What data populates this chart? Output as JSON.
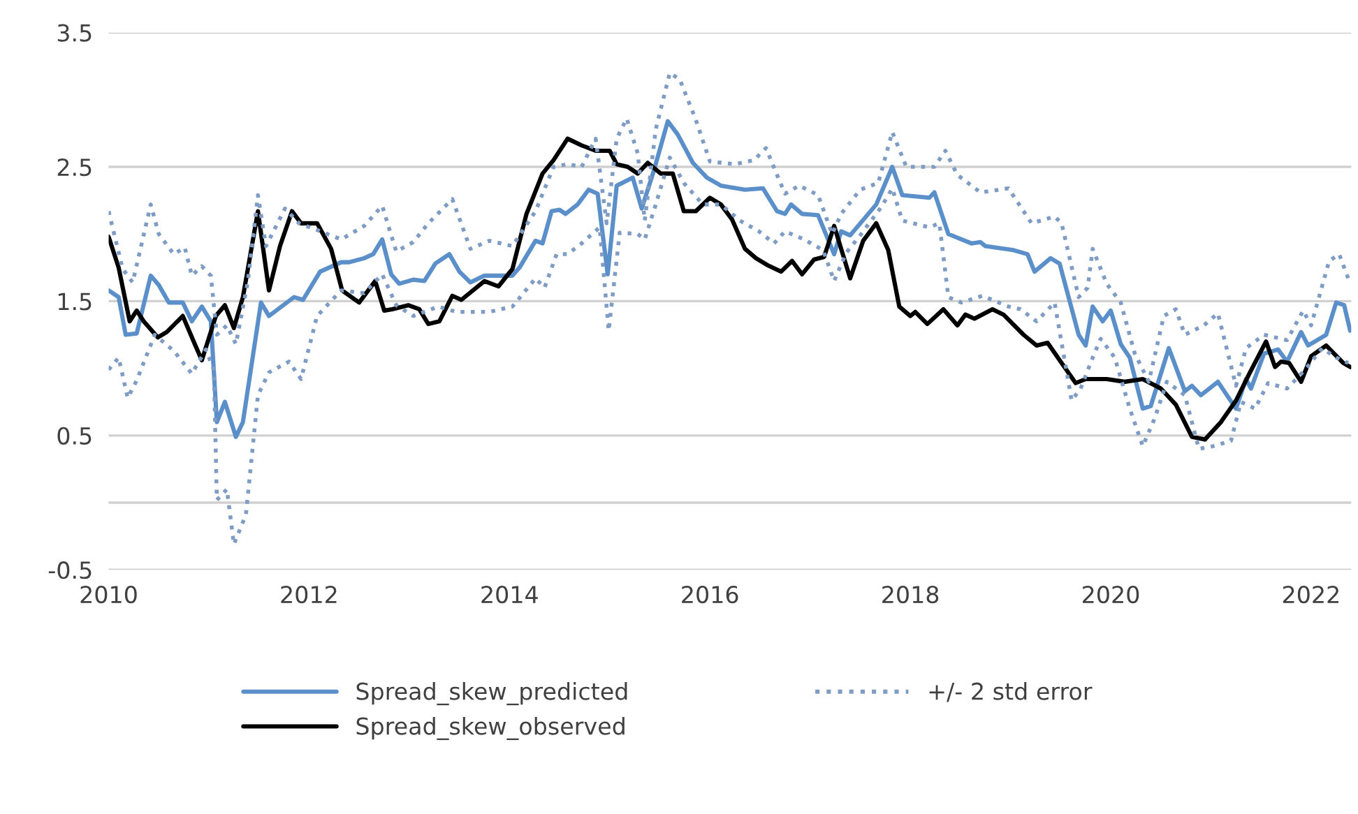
{
  "chart_data": {
    "type": "line",
    "xlim": [
      2010,
      2022.4
    ],
    "xticks": [
      2010,
      2012,
      2014,
      2016,
      2018,
      2020,
      2022
    ],
    "ylim": [
      -0.5,
      3.5
    ],
    "yticks": [
      -0.5,
      {
        "value": 0,
        "label": null
      },
      0.5,
      1.5,
      2.5,
      3.5
    ],
    "grid": "y",
    "legend": "bottom",
    "series": [
      {
        "name": "Spread_skew_predicted",
        "color": "#5b8fc9",
        "line_style": "solid",
        "x": [
          2010.0,
          2010.1,
          2010.17,
          2010.28,
          2010.42,
          2010.5,
          2010.6,
          2010.74,
          2010.83,
          2010.93,
          2011.02,
          2011.08,
          2011.16,
          2011.27,
          2011.34,
          2011.52,
          2011.6,
          2011.85,
          2011.94,
          2012.11,
          2012.32,
          2012.4,
          2012.55,
          2012.64,
          2012.73,
          2012.82,
          2012.9,
          2013.04,
          2013.15,
          2013.26,
          2013.4,
          2013.5,
          2013.61,
          2013.75,
          2014.03,
          2014.1,
          2014.26,
          2014.33,
          2014.42,
          2014.5,
          2014.56,
          2014.68,
          2014.79,
          2014.88,
          2014.98,
          2015.07,
          2015.23,
          2015.32,
          2015.44,
          2015.58,
          2015.68,
          2015.83,
          2015.97,
          2016.11,
          2016.35,
          2016.53,
          2016.67,
          2016.75,
          2016.81,
          2016.92,
          2017.08,
          2017.24,
          2017.31,
          2017.4,
          2017.66,
          2017.82,
          2017.92,
          2018.19,
          2018.24,
          2018.38,
          2018.61,
          2018.7,
          2018.75,
          2019.03,
          2019.17,
          2019.24,
          2019.4,
          2019.49,
          2019.68,
          2019.75,
          2019.82,
          2019.92,
          2020.0,
          2020.1,
          2020.19,
          2020.32,
          2020.4,
          2020.58,
          2020.74,
          2020.81,
          2020.9,
          2021.07,
          2021.25,
          2021.35,
          2021.4,
          2021.53,
          2021.67,
          2021.76,
          2021.9,
          2021.97,
          2022.15,
          2022.25,
          2022.33,
          2022.39
        ],
        "values": [
          1.58,
          1.53,
          1.25,
          1.26,
          1.69,
          1.62,
          1.49,
          1.49,
          1.35,
          1.46,
          1.35,
          0.6,
          0.75,
          0.49,
          0.6,
          1.49,
          1.39,
          1.53,
          1.51,
          1.72,
          1.79,
          1.79,
          1.82,
          1.85,
          1.96,
          1.7,
          1.63,
          1.66,
          1.65,
          1.78,
          1.85,
          1.72,
          1.64,
          1.69,
          1.69,
          1.75,
          1.95,
          1.93,
          2.17,
          2.18,
          2.15,
          2.22,
          2.33,
          2.3,
          1.7,
          2.36,
          2.42,
          2.19,
          2.47,
          2.84,
          2.74,
          2.53,
          2.42,
          2.36,
          2.33,
          2.34,
          2.17,
          2.15,
          2.22,
          2.15,
          2.14,
          1.85,
          2.02,
          1.99,
          2.22,
          2.5,
          2.29,
          2.27,
          2.31,
          2.0,
          1.93,
          1.94,
          1.91,
          1.88,
          1.85,
          1.72,
          1.82,
          1.78,
          1.25,
          1.17,
          1.46,
          1.35,
          1.43,
          1.18,
          1.08,
          0.7,
          0.72,
          1.15,
          0.83,
          0.87,
          0.8,
          0.9,
          0.7,
          0.92,
          0.85,
          1.11,
          1.14,
          1.05,
          1.27,
          1.17,
          1.25,
          1.49,
          1.47,
          1.28
        ]
      },
      {
        "name": "Spread_skew_observed",
        "color": "#000000",
        "line_style": "solid",
        "x": [
          2010.0,
          2010.1,
          2010.21,
          2010.28,
          2010.35,
          2010.49,
          2010.58,
          2010.74,
          2010.86,
          2010.93,
          2011.07,
          2011.16,
          2011.25,
          2011.34,
          2011.49,
          2011.6,
          2011.71,
          2011.83,
          2011.92,
          2012.08,
          2012.22,
          2012.33,
          2012.5,
          2012.66,
          2012.75,
          2012.83,
          2012.99,
          2013.1,
          2013.19,
          2013.3,
          2013.43,
          2013.52,
          2013.75,
          2013.89,
          2014.03,
          2014.17,
          2014.33,
          2014.44,
          2014.58,
          2014.72,
          2014.86,
          2015.0,
          2015.07,
          2015.18,
          2015.28,
          2015.38,
          2015.51,
          2015.63,
          2015.74,
          2015.86,
          2016.0,
          2016.11,
          2016.22,
          2016.35,
          2016.46,
          2016.57,
          2016.71,
          2016.82,
          2016.92,
          2017.04,
          2017.14,
          2017.24,
          2017.4,
          2017.53,
          2017.66,
          2017.78,
          2017.89,
          2018.0,
          2018.05,
          2018.17,
          2018.33,
          2018.47,
          2018.55,
          2018.64,
          2018.82,
          2018.93,
          2019.13,
          2019.26,
          2019.37,
          2019.51,
          2019.65,
          2019.75,
          2019.96,
          2020.14,
          2020.32,
          2020.5,
          2020.65,
          2020.81,
          2020.94,
          2021.1,
          2021.25,
          2021.39,
          2021.55,
          2021.64,
          2021.7,
          2021.78,
          2021.9,
          2022.0,
          2022.15,
          2022.32,
          2022.39
        ],
        "values": [
          1.98,
          1.75,
          1.35,
          1.43,
          1.35,
          1.23,
          1.27,
          1.39,
          1.18,
          1.06,
          1.39,
          1.47,
          1.3,
          1.53,
          2.17,
          1.58,
          1.91,
          2.17,
          2.08,
          2.08,
          1.89,
          1.58,
          1.49,
          1.65,
          1.43,
          1.44,
          1.47,
          1.44,
          1.33,
          1.35,
          1.54,
          1.51,
          1.65,
          1.61,
          1.74,
          2.15,
          2.45,
          2.55,
          2.71,
          2.66,
          2.62,
          2.62,
          2.52,
          2.5,
          2.45,
          2.53,
          2.45,
          2.45,
          2.17,
          2.17,
          2.27,
          2.22,
          2.11,
          1.89,
          1.82,
          1.77,
          1.72,
          1.8,
          1.7,
          1.81,
          1.83,
          2.06,
          1.67,
          1.95,
          2.08,
          1.88,
          1.46,
          1.39,
          1.42,
          1.33,
          1.44,
          1.32,
          1.4,
          1.37,
          1.44,
          1.4,
          1.25,
          1.17,
          1.19,
          1.04,
          0.89,
          0.92,
          0.92,
          0.9,
          0.92,
          0.85,
          0.73,
          0.49,
          0.47,
          0.6,
          0.76,
          0.97,
          1.2,
          1.01,
          1.05,
          1.04,
          0.9,
          1.09,
          1.17,
          1.04,
          1.01
        ]
      },
      {
        "name": "+/- 2 std error",
        "color": "#7f9cc4",
        "line_style": "dotted",
        "x": [
          2010.0,
          2010.14,
          2010.24,
          2010.42,
          2010.5,
          2010.65,
          2010.76,
          2010.83,
          2010.93,
          2011.02,
          2011.08,
          2011.18,
          2011.27,
          2011.39,
          2011.49,
          2011.57,
          2011.76,
          2011.9,
          2012.08,
          2012.32,
          2012.55,
          2012.73,
          2012.87,
          2013.04,
          2013.19,
          2013.43,
          2013.61,
          2013.8,
          2014.03,
          2014.26,
          2014.44,
          2014.58,
          2014.72,
          2014.86,
          2014.97,
          2015.07,
          2015.17,
          2015.28,
          2015.35,
          2015.46,
          2015.6,
          2015.7,
          2015.86,
          2016.0,
          2016.25,
          2016.44,
          2016.56,
          2016.67,
          2016.75,
          2016.89,
          2017.08,
          2017.22,
          2017.31,
          2017.5,
          2017.68,
          2017.82,
          2017.96,
          2018.24,
          2018.35,
          2018.47,
          2018.7,
          2018.98,
          2019.21,
          2019.44,
          2019.51,
          2019.68,
          2019.77,
          2019.82,
          2019.96,
          2020.1,
          2020.24,
          2020.38,
          2020.53,
          2020.65,
          2020.74,
          2020.93,
          2021.07,
          2021.25,
          2021.35,
          2021.53,
          2021.76,
          2021.92,
          2022.0,
          2022.18,
          2022.28,
          2022.38
        ],
        "values": [
          2.17,
          1.74,
          1.64,
          2.22,
          2.0,
          1.85,
          1.9,
          1.69,
          1.76,
          1.69,
          1.25,
          1.32,
          1.18,
          1.65,
          2.29,
          1.91,
          2.19,
          2.08,
          2.03,
          1.96,
          2.06,
          2.21,
          1.87,
          1.94,
          2.08,
          2.26,
          1.89,
          1.95,
          1.91,
          2.17,
          2.5,
          2.52,
          2.5,
          2.71,
          2.08,
          2.71,
          2.86,
          2.6,
          2.1,
          2.78,
          3.2,
          3.15,
          2.85,
          2.54,
          2.52,
          2.55,
          2.64,
          2.44,
          2.3,
          2.36,
          2.29,
          2.0,
          2.15,
          2.33,
          2.38,
          2.76,
          2.5,
          2.5,
          2.62,
          2.44,
          2.31,
          2.34,
          2.08,
          2.13,
          2.08,
          1.53,
          1.6,
          1.89,
          1.63,
          1.49,
          1.11,
          0.9,
          1.39,
          1.44,
          1.25,
          1.32,
          1.41,
          0.87,
          1.15,
          1.25,
          1.21,
          1.43,
          1.32,
          1.8,
          1.85,
          1.65
        ]
      },
      {
        "color": "#7f9cc4",
        "line_style": "dotted",
        "x": [
          2010.0,
          2010.1,
          2010.19,
          2010.28,
          2010.46,
          2010.65,
          2010.83,
          2010.97,
          2011.05,
          2011.08,
          2011.18,
          2011.25,
          2011.37,
          2011.49,
          2011.6,
          2011.8,
          2011.92,
          2012.08,
          2012.32,
          2012.55,
          2012.73,
          2012.87,
          2013.04,
          2013.29,
          2013.47,
          2013.61,
          2013.8,
          2014.03,
          2014.26,
          2014.35,
          2014.47,
          2014.58,
          2014.72,
          2014.9,
          2014.99,
          2015.1,
          2015.28,
          2015.35,
          2015.46,
          2015.6,
          2015.74,
          2015.93,
          2016.11,
          2016.3,
          2016.49,
          2016.64,
          2016.75,
          2016.94,
          2017.13,
          2017.24,
          2017.36,
          2017.5,
          2017.71,
          2017.82,
          2017.92,
          2018.19,
          2018.29,
          2018.38,
          2018.51,
          2018.72,
          2018.98,
          2019.1,
          2019.26,
          2019.44,
          2019.61,
          2019.7,
          2019.82,
          2019.9,
          2020.04,
          2020.19,
          2020.32,
          2020.44,
          2020.56,
          2020.74,
          2020.88,
          2021.02,
          2021.2,
          2021.3,
          2021.44,
          2021.57,
          2021.76,
          2021.94,
          2022.11,
          2022.25,
          2022.37
        ],
        "values": [
          0.99,
          1.08,
          0.78,
          0.91,
          1.25,
          1.13,
          0.96,
          1.14,
          0.99,
          0.02,
          0.1,
          -0.31,
          -0.09,
          0.8,
          0.97,
          1.05,
          0.92,
          1.39,
          1.58,
          1.56,
          1.7,
          1.47,
          1.39,
          1.46,
          1.42,
          1.42,
          1.42,
          1.46,
          1.67,
          1.6,
          1.85,
          1.85,
          1.93,
          2.05,
          1.28,
          2.01,
          2.0,
          1.96,
          2.22,
          2.57,
          2.38,
          2.22,
          2.22,
          2.1,
          2.02,
          1.93,
          2.02,
          1.96,
          1.88,
          1.65,
          1.86,
          1.99,
          2.2,
          2.34,
          2.1,
          2.05,
          2.08,
          1.53,
          1.49,
          1.54,
          1.46,
          1.44,
          1.35,
          1.49,
          0.76,
          0.85,
          1.08,
          1.22,
          1.08,
          0.7,
          0.42,
          0.63,
          0.9,
          0.8,
          0.4,
          0.42,
          0.46,
          0.75,
          0.7,
          0.89,
          0.85,
          0.99,
          1.15,
          1.08,
          1.04
        ]
      }
    ]
  }
}
